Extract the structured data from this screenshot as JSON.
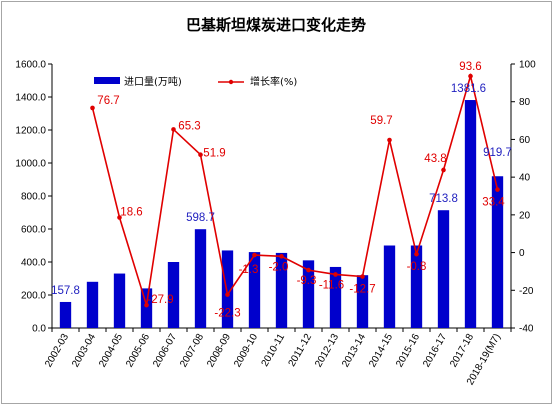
{
  "chart_data": {
    "type": "bar+line",
    "title": "巴基斯坦煤炭进口变化走势",
    "categories": [
      "2002-03",
      "2003-04",
      "2004-05",
      "2005-06",
      "2006-07",
      "2007-08",
      "2008-09",
      "2009-10",
      "2010-11",
      "2011-12",
      "2012-13",
      "2013-14",
      "2014-15",
      "2015-16",
      "2016-17",
      "2017-18",
      "2018-19(M7)"
    ],
    "series": [
      {
        "name": "进口量(万吨)",
        "type": "bar",
        "axis": "left",
        "color": "#0000cc",
        "values": [
          157.8,
          280,
          330,
          240,
          400,
          598.7,
          470,
          460,
          455,
          410,
          370,
          320,
          500,
          500,
          713.8,
          1381.6,
          919.7
        ],
        "labels": [
          "157.8",
          "",
          "",
          "",
          "",
          "598.7",
          "",
          "",
          "",
          "",
          "",
          "",
          "",
          "",
          "713.8",
          "1381.6",
          "919.7"
        ]
      },
      {
        "name": "增长率(%)",
        "type": "line",
        "axis": "right",
        "color": "#e00000",
        "values": [
          null,
          76.7,
          18.6,
          -27.9,
          65.3,
          51.9,
          -22.3,
          -1.3,
          -2.0,
          -9.3,
          -11.6,
          -12.7,
          59.7,
          -0.8,
          43.8,
          93.6,
          33.4
        ],
        "labels": [
          "",
          "76.7",
          "18.6",
          "-27.9",
          "65.3",
          "51.9",
          "-22.3",
          "-1.3",
          "-2.0",
          "-9.3",
          "-11.6",
          "-12.7",
          "59.7",
          "-0.8",
          "43.8",
          "93.6",
          "33.4"
        ]
      }
    ],
    "y_left": {
      "min": 0,
      "max": 1600,
      "step": 200,
      "ticks": [
        "0.0",
        "200.0",
        "400.0",
        "600.0",
        "800.0",
        "1000.0",
        "1200.0",
        "1400.0",
        "1600.0"
      ]
    },
    "y_right": {
      "min": -40,
      "max": 100,
      "step": 20,
      "ticks": [
        "-40",
        "-20",
        "0",
        "20",
        "40",
        "60",
        "80",
        "100"
      ]
    },
    "grid": false,
    "legend_position": "top"
  }
}
